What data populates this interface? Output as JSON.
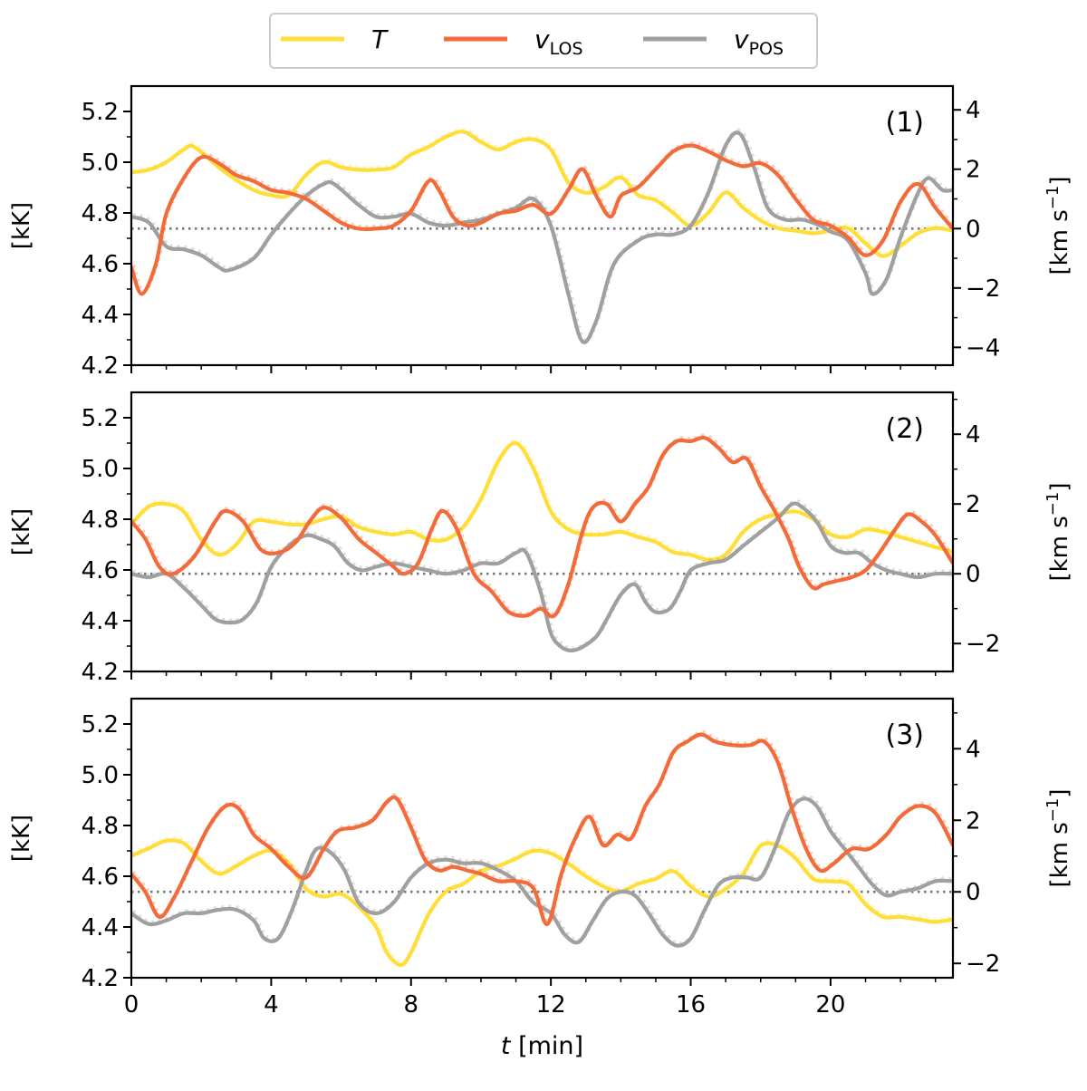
{
  "legend": {
    "placement": "top-center",
    "entries": [
      {
        "key": "T",
        "label_main": "T",
        "label_sub": "",
        "color": "#FFDE3A"
      },
      {
        "key": "vlos",
        "label_main": "v",
        "label_sub": "LOS",
        "color": "#F26B3A"
      },
      {
        "key": "vpos",
        "label_main": "v",
        "label_sub": "POS",
        "color": "#A0A0A0"
      }
    ]
  },
  "xaxis": {
    "label_italic": "t",
    "label_rest": " [min]",
    "ticks": [
      0,
      4,
      8,
      12,
      16,
      20
    ],
    "range": [
      0,
      23.5
    ]
  },
  "chart_data": [
    {
      "type": "line",
      "panel_label": "(1)",
      "ylabel_left": "[kK]",
      "ylabel_right_main": "[km s",
      "ylabel_right_sup": "−1",
      "ylabel_right_end": "]",
      "left_ticks": [
        "4.2",
        "4.4",
        "4.6",
        "4.8",
        "5.0",
        "5.2"
      ],
      "left_range": [
        4.2,
        5.3
      ],
      "right_ticks": [
        "−4",
        "−2",
        "0",
        "2",
        "4"
      ],
      "right_range": [
        -4.6,
        4.8
      ],
      "zero_line": 0,
      "series": [
        {
          "key": "T",
          "axis": "left",
          "color": "#FFDE3A",
          "x": [
            0,
            0.5,
            1,
            1.5,
            1.8,
            2.5,
            3,
            3.5,
            4,
            4.5,
            5,
            5.5,
            6,
            6.5,
            7,
            7.5,
            8,
            8.5,
            9,
            9.5,
            10,
            10.5,
            11,
            11.5,
            12,
            12.5,
            13,
            13.5,
            14,
            14.5,
            15,
            15.5,
            16,
            16.5,
            17,
            17.5,
            18,
            18.5,
            19,
            19.5,
            20,
            20.5,
            21,
            21.5,
            22,
            22.5,
            23,
            23.5
          ],
          "y": [
            4.96,
            4.97,
            5.0,
            5.05,
            5.06,
            4.98,
            4.93,
            4.89,
            4.87,
            4.87,
            4.95,
            5.0,
            4.98,
            4.97,
            4.97,
            4.98,
            5.03,
            5.06,
            5.1,
            5.12,
            5.08,
            5.05,
            5.08,
            5.09,
            5.05,
            4.92,
            4.88,
            4.9,
            4.94,
            4.87,
            4.85,
            4.8,
            4.75,
            4.8,
            4.88,
            4.82,
            4.77,
            4.74,
            4.73,
            4.72,
            4.73,
            4.74,
            4.68,
            4.63,
            4.67,
            4.72,
            4.74,
            4.73
          ]
        },
        {
          "key": "vlos",
          "axis": "right",
          "color": "#F26B3A",
          "x": [
            0,
            0.3,
            0.7,
            1,
            1.5,
            2,
            2.5,
            3,
            3.5,
            4,
            4.5,
            5,
            5.5,
            6,
            6.5,
            7,
            7.5,
            8,
            8.5,
            8.8,
            9.2,
            9.6,
            10,
            10.5,
            11,
            11.5,
            12,
            12.5,
            12.9,
            13.3,
            13.7,
            14,
            14.5,
            15,
            15.5,
            16,
            16.5,
            17,
            17.5,
            18,
            18.5,
            19,
            19.5,
            20,
            20.5,
            21,
            21.5,
            22,
            22.5,
            23,
            23.5
          ],
          "y": [
            -1.3,
            -2.2,
            -1.2,
            0.5,
            1.7,
            2.4,
            2.2,
            1.8,
            1.6,
            1.3,
            1.2,
            1.0,
            0.6,
            0.2,
            0.0,
            0.0,
            0.1,
            0.6,
            1.6,
            1.3,
            0.4,
            0.1,
            0.2,
            0.5,
            0.6,
            0.8,
            0.5,
            1.3,
            2.0,
            1.1,
            0.4,
            1.1,
            1.4,
            2.0,
            2.6,
            2.8,
            2.6,
            2.3,
            2.1,
            2.2,
            1.8,
            1.0,
            0.3,
            0.1,
            -0.3,
            -0.9,
            -0.4,
            0.9,
            1.5,
            0.7,
            0.0
          ]
        },
        {
          "key": "vpos",
          "axis": "right",
          "color": "#A0A0A0",
          "x": [
            0,
            0.5,
            1,
            1.5,
            2,
            2.5,
            2.8,
            3.5,
            4,
            4.5,
            5,
            5.5,
            5.8,
            6.5,
            7,
            7.5,
            8,
            8.5,
            9,
            9.5,
            10,
            10.5,
            11,
            11.5,
            12,
            12.5,
            12.9,
            13.3,
            13.8,
            14.5,
            15,
            15.5,
            16,
            16.5,
            17,
            17.4,
            17.8,
            18.2,
            18.7,
            19.2,
            19.7,
            20,
            20.5,
            21,
            21.2,
            21.6,
            22,
            22.5,
            22.8,
            23.2,
            23.5
          ],
          "y": [
            0.4,
            0.2,
            -0.6,
            -0.7,
            -0.9,
            -1.3,
            -1.4,
            -1.0,
            -0.2,
            0.5,
            1.1,
            1.5,
            1.5,
            0.8,
            0.4,
            0.4,
            0.5,
            0.2,
            0.1,
            0.2,
            0.3,
            0.5,
            0.7,
            1.0,
            0.1,
            -2.2,
            -3.8,
            -3.1,
            -1.2,
            -0.4,
            -0.2,
            -0.2,
            0.1,
            1.2,
            2.8,
            3.2,
            2.1,
            0.7,
            0.3,
            0.3,
            0.1,
            -0.1,
            -0.4,
            -1.5,
            -2.2,
            -1.7,
            -0.3,
            1.2,
            1.7,
            1.3,
            1.3
          ]
        }
      ]
    },
    {
      "type": "line",
      "panel_label": "(2)",
      "ylabel_left": "[kK]",
      "ylabel_right_main": "[km s",
      "ylabel_right_sup": "−1",
      "ylabel_right_end": "]",
      "left_ticks": [
        "4.2",
        "4.4",
        "4.6",
        "4.8",
        "5.0",
        "5.2"
      ],
      "left_range": [
        4.2,
        5.3
      ],
      "right_ticks": [
        "−2",
        "0",
        "2",
        "4"
      ],
      "right_range": [
        -2.8,
        5.2
      ],
      "zero_line": 0,
      "series": [
        {
          "key": "T",
          "axis": "left",
          "color": "#FFDE3A",
          "x": [
            0,
            0.5,
            1,
            1.5,
            2,
            2.5,
            3,
            3.5,
            4,
            4.5,
            5,
            5.5,
            6,
            6.5,
            7,
            7.5,
            8,
            8.5,
            9,
            9.5,
            10,
            10.5,
            11,
            11.5,
            12,
            12.5,
            13,
            13.5,
            14,
            14.5,
            15,
            15.5,
            16,
            16.5,
            17,
            17.5,
            18,
            18.5,
            19,
            19.5,
            20,
            20.5,
            21,
            21.5,
            22,
            22.5,
            23,
            23.5
          ],
          "y": [
            4.78,
            4.85,
            4.86,
            4.83,
            4.72,
            4.66,
            4.7,
            4.79,
            4.79,
            4.78,
            4.78,
            4.8,
            4.81,
            4.77,
            4.75,
            4.74,
            4.75,
            4.72,
            4.72,
            4.77,
            4.88,
            5.03,
            5.1,
            5.0,
            4.83,
            4.76,
            4.74,
            4.74,
            4.75,
            4.73,
            4.71,
            4.67,
            4.66,
            4.64,
            4.66,
            4.75,
            4.8,
            4.82,
            4.83,
            4.8,
            4.74,
            4.73,
            4.76,
            4.75,
            4.73,
            4.71,
            4.69,
            4.67
          ]
        },
        {
          "key": "vlos",
          "axis": "right",
          "color": "#F26B3A",
          "x": [
            0,
            0.4,
            0.8,
            1.2,
            1.8,
            2.4,
            2.7,
            3.2,
            3.7,
            4.2,
            4.7,
            5.1,
            5.5,
            6,
            6.5,
            7,
            7.5,
            7.8,
            8.2,
            8.6,
            8.9,
            9.3,
            9.8,
            10.3,
            10.8,
            11.3,
            11.7,
            12.1,
            12.5,
            12.9,
            13.2,
            13.6,
            14,
            14.4,
            14.8,
            15.2,
            15.6,
            16,
            16.4,
            16.8,
            17.2,
            17.6,
            18,
            18.4,
            18.8,
            19.1,
            19.5,
            19.8,
            20.2,
            20.6,
            21,
            21.4,
            21.8,
            22.2,
            22.6,
            23,
            23.5
          ],
          "y": [
            1.5,
            1.0,
            0.2,
            0.0,
            0.5,
            1.5,
            1.8,
            1.5,
            0.7,
            0.6,
            0.9,
            1.5,
            1.9,
            1.6,
            1.0,
            0.6,
            0.2,
            0.0,
            0.3,
            1.3,
            1.8,
            1.3,
            0.0,
            -0.5,
            -1.1,
            -1.2,
            -1.0,
            -1.2,
            -0.3,
            1.2,
            1.9,
            2.0,
            1.5,
            2.0,
            2.5,
            3.4,
            3.8,
            3.8,
            3.9,
            3.6,
            3.2,
            3.3,
            2.5,
            1.8,
            1.0,
            0.2,
            -0.4,
            -0.3,
            -0.2,
            -0.1,
            0.1,
            0.6,
            1.2,
            1.7,
            1.5,
            1.1,
            0.3
          ]
        },
        {
          "key": "vpos",
          "axis": "right",
          "color": "#A0A0A0",
          "x": [
            0,
            0.5,
            1,
            1.5,
            2,
            2.4,
            2.8,
            3.2,
            3.6,
            4,
            4.5,
            5,
            5.4,
            5.8,
            6.2,
            6.6,
            7,
            7.5,
            8,
            8.5,
            9,
            9.5,
            10,
            10.5,
            11,
            11.3,
            11.7,
            12,
            12.3,
            12.6,
            12.9,
            13.3,
            13.6,
            14,
            14.4,
            14.7,
            15,
            15.4,
            15.7,
            16,
            16.5,
            17,
            17.5,
            18,
            18.5,
            18.9,
            19.2,
            19.6,
            20,
            20.4,
            20.8,
            21.2,
            21.6,
            22,
            22.5,
            23,
            23.5
          ],
          "y": [
            0.0,
            -0.1,
            0.0,
            -0.4,
            -0.9,
            -1.3,
            -1.4,
            -1.3,
            -0.8,
            0.2,
            0.8,
            1.1,
            1.0,
            0.8,
            0.3,
            0.1,
            0.2,
            0.3,
            0.2,
            0.1,
            0.0,
            0.1,
            0.3,
            0.3,
            0.6,
            0.6,
            -0.5,
            -1.7,
            -2.1,
            -2.2,
            -2.1,
            -1.8,
            -1.3,
            -0.6,
            -0.3,
            -0.8,
            -1.1,
            -1.0,
            -0.5,
            0.1,
            0.3,
            0.4,
            0.8,
            1.2,
            1.6,
            2.0,
            1.9,
            1.5,
            0.8,
            0.6,
            0.6,
            0.3,
            0.1,
            0.0,
            -0.1,
            0.0,
            0.0
          ]
        }
      ]
    },
    {
      "type": "line",
      "panel_label": "(3)",
      "ylabel_left": "[kK]",
      "ylabel_right_main": "[km s",
      "ylabel_right_sup": "−1",
      "ylabel_right_end": "]",
      "left_ticks": [
        "4.2",
        "4.4",
        "4.6",
        "4.8",
        "5.0",
        "5.2"
      ],
      "left_range": [
        4.2,
        5.3
      ],
      "right_ticks": [
        "−2",
        "0",
        "2",
        "4"
      ],
      "right_range": [
        -2.4,
        5.4
      ],
      "zero_line": 0,
      "series": [
        {
          "key": "T",
          "axis": "left",
          "color": "#FFDE3A",
          "x": [
            0,
            0.5,
            1,
            1.5,
            2,
            2.5,
            3,
            3.5,
            4,
            4.5,
            5,
            5.5,
            6,
            6.5,
            7,
            7.3,
            7.7,
            8,
            8.5,
            9,
            9.5,
            10,
            10.5,
            11,
            11.5,
            12,
            12.5,
            13,
            13.5,
            14,
            14.5,
            15,
            15.5,
            16,
            16.5,
            17,
            17.5,
            18,
            18.5,
            19,
            19.5,
            20,
            20.5,
            21,
            21.5,
            22,
            22.5,
            23,
            23.5
          ],
          "y": [
            4.68,
            4.71,
            4.74,
            4.73,
            4.66,
            4.61,
            4.64,
            4.68,
            4.7,
            4.65,
            4.55,
            4.52,
            4.53,
            4.48,
            4.4,
            4.3,
            4.25,
            4.3,
            4.45,
            4.54,
            4.57,
            4.62,
            4.64,
            4.67,
            4.7,
            4.69,
            4.65,
            4.6,
            4.56,
            4.54,
            4.57,
            4.59,
            4.62,
            4.56,
            4.52,
            4.55,
            4.61,
            4.72,
            4.72,
            4.67,
            4.59,
            4.58,
            4.57,
            4.49,
            4.44,
            4.44,
            4.43,
            4.42,
            4.43
          ]
        },
        {
          "key": "vlos",
          "axis": "right",
          "color": "#F26B3A",
          "x": [
            0,
            0.4,
            0.8,
            1.2,
            1.7,
            2.2,
            2.7,
            3.1,
            3.5,
            4,
            4.5,
            5,
            5.5,
            5.9,
            6.4,
            6.9,
            7.3,
            7.6,
            8,
            8.4,
            8.8,
            9.2,
            9.6,
            10,
            10.5,
            11,
            11.5,
            11.9,
            12.3,
            12.7,
            13.1,
            13.5,
            13.9,
            14.3,
            14.7,
            15.1,
            15.5,
            15.9,
            16.3,
            16.7,
            17.2,
            17.7,
            18.1,
            18.5,
            18.9,
            19.3,
            19.7,
            20.1,
            20.6,
            21.1,
            21.6,
            22,
            22.5,
            23,
            23.5
          ],
          "y": [
            0.5,
            0.0,
            -0.7,
            -0.2,
            0.8,
            1.8,
            2.4,
            2.3,
            1.6,
            1.2,
            0.7,
            0.4,
            1.2,
            1.7,
            1.8,
            2.0,
            2.5,
            2.6,
            1.8,
            0.9,
            0.6,
            0.7,
            0.6,
            0.5,
            0.3,
            0.3,
            0.1,
            -0.9,
            0.5,
            1.5,
            2.1,
            1.3,
            1.6,
            1.5,
            2.4,
            3.0,
            3.9,
            4.2,
            4.4,
            4.2,
            4.1,
            4.1,
            4.2,
            3.6,
            2.3,
            1.2,
            0.6,
            0.8,
            1.2,
            1.2,
            1.6,
            2.1,
            2.4,
            2.2,
            1.3
          ]
        },
        {
          "key": "vpos",
          "axis": "right",
          "color": "#A0A0A0",
          "x": [
            0,
            0.5,
            1,
            1.5,
            2,
            2.5,
            3,
            3.5,
            3.8,
            4.2,
            4.6,
            5,
            5.3,
            5.7,
            6.1,
            6.5,
            7,
            7.5,
            8,
            8.5,
            9,
            9.5,
            10,
            10.5,
            11,
            11.5,
            12,
            12.4,
            12.8,
            13.2,
            13.6,
            14,
            14.4,
            14.8,
            15.2,
            15.6,
            16,
            16.4,
            16.8,
            17.2,
            17.6,
            18,
            18.4,
            18.8,
            19.2,
            19.6,
            20,
            20.4,
            20.8,
            21.2,
            21.6,
            22,
            22.5,
            23,
            23.5
          ],
          "y": [
            -0.6,
            -0.9,
            -0.8,
            -0.6,
            -0.6,
            -0.5,
            -0.5,
            -0.8,
            -1.3,
            -1.3,
            -0.5,
            0.6,
            1.2,
            1.1,
            0.6,
            -0.3,
            -0.6,
            -0.3,
            0.4,
            0.8,
            0.9,
            0.8,
            0.8,
            0.6,
            0.3,
            -0.3,
            -0.6,
            -1.2,
            -1.4,
            -0.8,
            -0.2,
            0.0,
            -0.1,
            -0.6,
            -1.2,
            -1.5,
            -1.3,
            -0.5,
            0.2,
            0.4,
            0.4,
            0.4,
            1.2,
            2.2,
            2.6,
            2.4,
            1.7,
            1.2,
            0.7,
            0.2,
            -0.1,
            0.0,
            0.1,
            0.3,
            0.3
          ]
        }
      ]
    }
  ]
}
